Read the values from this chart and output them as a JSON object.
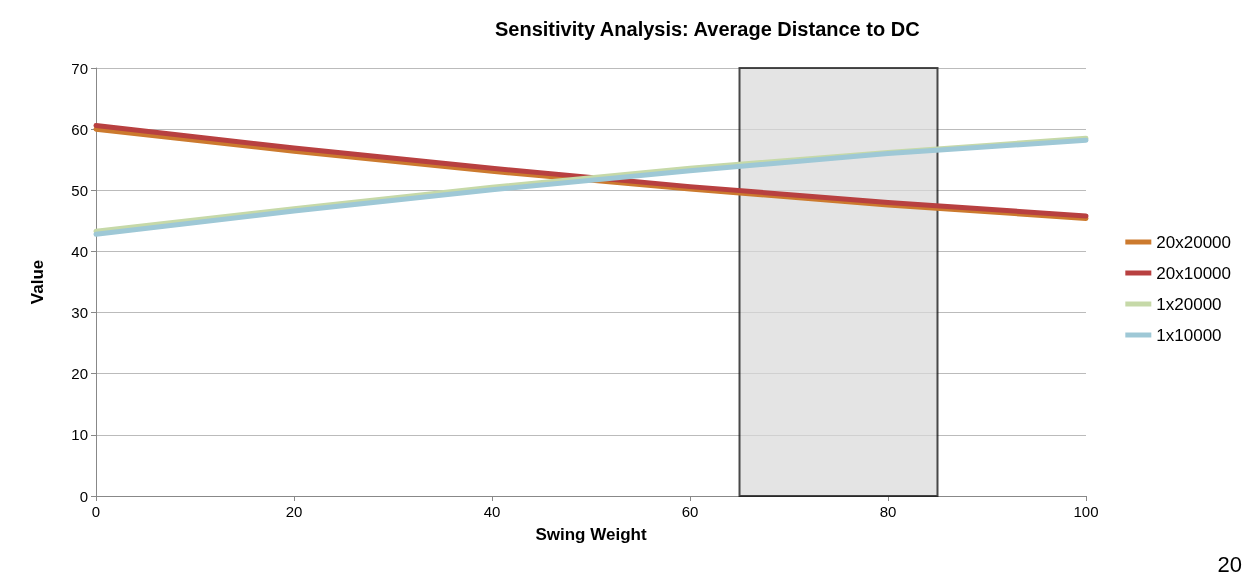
{
  "chart_data": {
    "type": "line",
    "title": "Sensitivity Analysis: Average Distance to DC",
    "xlabel": "Swing Weight",
    "ylabel": "Value",
    "x": [
      0,
      20,
      40,
      60,
      80,
      100
    ],
    "series": [
      {
        "name": "20x20000",
        "color": "#cc7a2e",
        "values": [
          60.0,
          56.4,
          53.1,
          50.2,
          47.6,
          45.4
        ]
      },
      {
        "name": "20x10000",
        "color": "#b84040",
        "values": [
          60.6,
          56.9,
          53.6,
          50.6,
          48.0,
          45.8
        ]
      },
      {
        "name": "1x20000",
        "color": "#c6d9a8",
        "values": [
          43.3,
          47.0,
          50.5,
          53.6,
          56.2,
          58.5
        ]
      },
      {
        "name": "1x10000",
        "color": "#9ec8d6",
        "values": [
          42.8,
          46.6,
          50.1,
          53.2,
          56.0,
          58.2
        ]
      }
    ],
    "xlim": [
      0,
      100
    ],
    "xticks": [
      0,
      20,
      40,
      60,
      80,
      100
    ],
    "ylim": [
      0,
      70
    ],
    "yticks": [
      0,
      10,
      20,
      30,
      40,
      50,
      60,
      70
    ],
    "bands": [
      {
        "axis": "x",
        "from": 65,
        "to": 85,
        "color": "#d9d9d9"
      }
    ],
    "annotations": [
      "20"
    ],
    "grid": "y",
    "legend": "right",
    "marker": "none",
    "line_style": "solid"
  }
}
